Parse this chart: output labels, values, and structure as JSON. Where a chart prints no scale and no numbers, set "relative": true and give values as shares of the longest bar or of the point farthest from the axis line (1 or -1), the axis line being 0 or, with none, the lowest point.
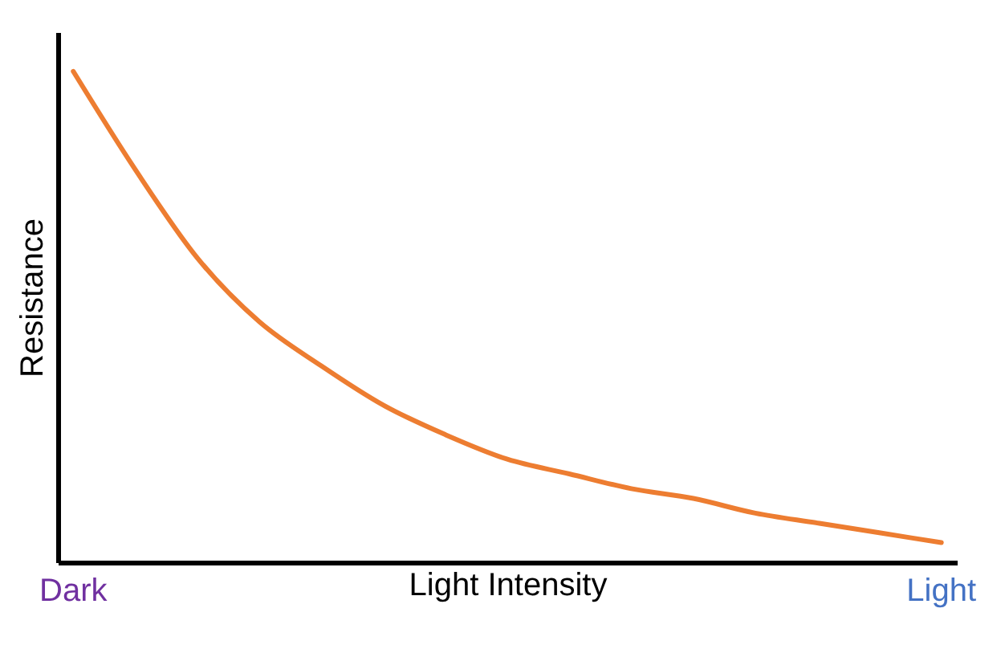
{
  "chart_data": {
    "type": "line",
    "relative": true,
    "xlabel": "Light Intensity",
    "ylabel": "Resistance",
    "categories": [
      null,
      null,
      null,
      null,
      null,
      null,
      null,
      null,
      null,
      null,
      null,
      null,
      null,
      null,
      null
    ],
    "series": [
      {
        "color": "#ed7d31",
        "values": [
          1.0,
          0.8,
          0.62,
          0.49,
          0.4,
          0.32,
          0.26,
          0.21,
          0.18,
          0.15,
          0.13,
          0.1,
          0.08,
          0.06,
          0.04
        ]
      }
    ],
    "annotations": [
      "Dark",
      "Light"
    ]
  }
}
